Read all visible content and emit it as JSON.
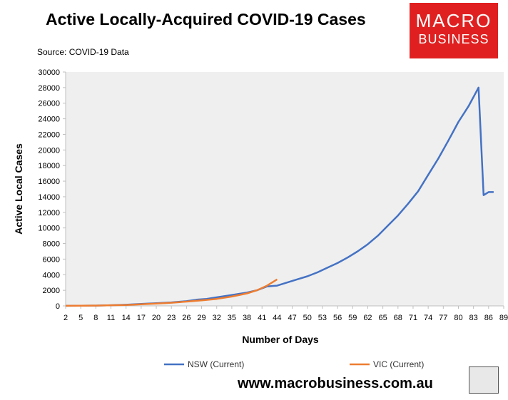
{
  "header": {
    "title": "Active Locally-Acquired COVID-19 Cases",
    "source": "Source: COVID-19 Data"
  },
  "logo": {
    "line1": "MACRO",
    "line2": "BUSINESS"
  },
  "footer": {
    "url": "www.macrobusiness.com.au"
  },
  "colors": {
    "nsw": "#4472c4",
    "vic": "#ed7d31",
    "plot_bg": "#efefef",
    "logo_bg": "#e02020"
  },
  "chart_data": {
    "type": "line",
    "title": "Active Locally-Acquired COVID-19 Cases",
    "xlabel": "Number of Days",
    "ylabel": "Active Local Cases",
    "xlim": [
      2,
      89
    ],
    "ylim": [
      0,
      30000
    ],
    "y_ticks": [
      0,
      2000,
      4000,
      6000,
      8000,
      10000,
      12000,
      14000,
      16000,
      18000,
      20000,
      22000,
      24000,
      26000,
      28000,
      30000
    ],
    "x_ticks": [
      2,
      5,
      8,
      11,
      14,
      17,
      20,
      23,
      26,
      29,
      32,
      35,
      38,
      41,
      44,
      47,
      50,
      53,
      56,
      59,
      62,
      65,
      68,
      71,
      74,
      77,
      80,
      83,
      86,
      89
    ],
    "grid": false,
    "legend_position": "bottom",
    "series": [
      {
        "name": "NSW (Current)",
        "x": [
          2,
          5,
          8,
          11,
          14,
          17,
          20,
          23,
          26,
          28,
          30,
          32,
          34,
          36,
          38,
          40,
          42,
          44,
          46,
          48,
          50,
          52,
          54,
          56,
          58,
          60,
          62,
          64,
          66,
          68,
          70,
          72,
          74,
          76,
          78,
          80,
          82,
          84,
          85,
          86,
          87
        ],
        "y": [
          10,
          20,
          40,
          80,
          150,
          250,
          350,
          450,
          600,
          800,
          900,
          1100,
          1300,
          1500,
          1700,
          2000,
          2500,
          2600,
          3000,
          3400,
          3800,
          4300,
          4900,
          5500,
          6200,
          7000,
          7900,
          9000,
          10300,
          11600,
          13100,
          14700,
          16800,
          18900,
          21200,
          23600,
          25600,
          28000,
          14200,
          14600,
          14600
        ]
      },
      {
        "name": "VIC (Current)",
        "x": [
          2,
          5,
          8,
          11,
          14,
          17,
          20,
          23,
          26,
          29,
          32,
          35,
          38,
          40,
          42,
          43,
          44
        ],
        "y": [
          10,
          20,
          40,
          80,
          120,
          200,
          300,
          400,
          550,
          700,
          900,
          1200,
          1600,
          2000,
          2600,
          3000,
          3400
        ]
      }
    ]
  }
}
